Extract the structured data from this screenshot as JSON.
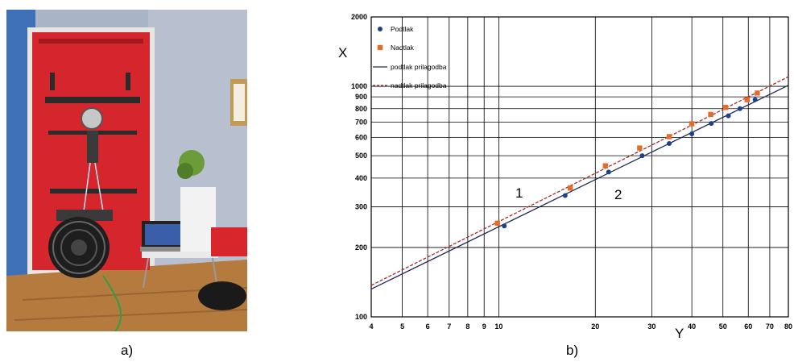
{
  "captions": {
    "a": "a)",
    "b": "b)"
  },
  "photo": {
    "description_icon": "blower-door-test-photo"
  },
  "chart_data": {
    "type": "scatter",
    "title": "",
    "xlabel": "Y",
    "ylabel": "X",
    "x_scale": "log",
    "y_scale": "log",
    "xlim": [
      4,
      80
    ],
    "ylim": [
      100,
      2000
    ],
    "x_ticks": [
      4,
      5,
      6,
      7,
      8,
      9,
      10,
      20,
      30,
      40,
      50,
      60,
      70,
      80
    ],
    "y_ticks": [
      100,
      200,
      300,
      400,
      500,
      600,
      700,
      800,
      900,
      1000,
      2000
    ],
    "grid": true,
    "legend_position": "top-left",
    "annotations": [
      "1",
      "2"
    ],
    "series": [
      {
        "name": "Podtlak",
        "kind": "points",
        "marker": "circle",
        "color": "#1f3f8f",
        "points": [
          [
            10.4,
            248
          ],
          [
            16.1,
            336
          ],
          [
            22.0,
            425
          ],
          [
            28.0,
            500
          ],
          [
            34.0,
            565
          ],
          [
            40.0,
            622
          ],
          [
            46.0,
            690
          ],
          [
            52.0,
            745
          ],
          [
            56.5,
            800
          ],
          [
            63.0,
            875
          ]
        ]
      },
      {
        "name": "Nadtlak",
        "kind": "points",
        "marker": "square",
        "color": "#e36c2a",
        "points": [
          [
            9.9,
            255
          ],
          [
            16.7,
            362
          ],
          [
            21.5,
            452
          ],
          [
            27.5,
            540
          ],
          [
            34.0,
            605
          ],
          [
            40.0,
            688
          ],
          [
            45.8,
            755
          ],
          [
            51.0,
            810
          ],
          [
            59.5,
            875
          ],
          [
            64.0,
            935
          ]
        ]
      },
      {
        "name": "podtlak prilagodba",
        "kind": "line",
        "style": "solid",
        "color": "#1f2a5a",
        "points": [
          [
            4,
            132
          ],
          [
            80,
            1010
          ]
        ]
      },
      {
        "name": "nadtlak prilagodba",
        "kind": "line",
        "style": "dashed",
        "color": "#a52a2a",
        "points": [
          [
            4,
            137
          ],
          [
            80,
            1100
          ]
        ]
      }
    ]
  }
}
